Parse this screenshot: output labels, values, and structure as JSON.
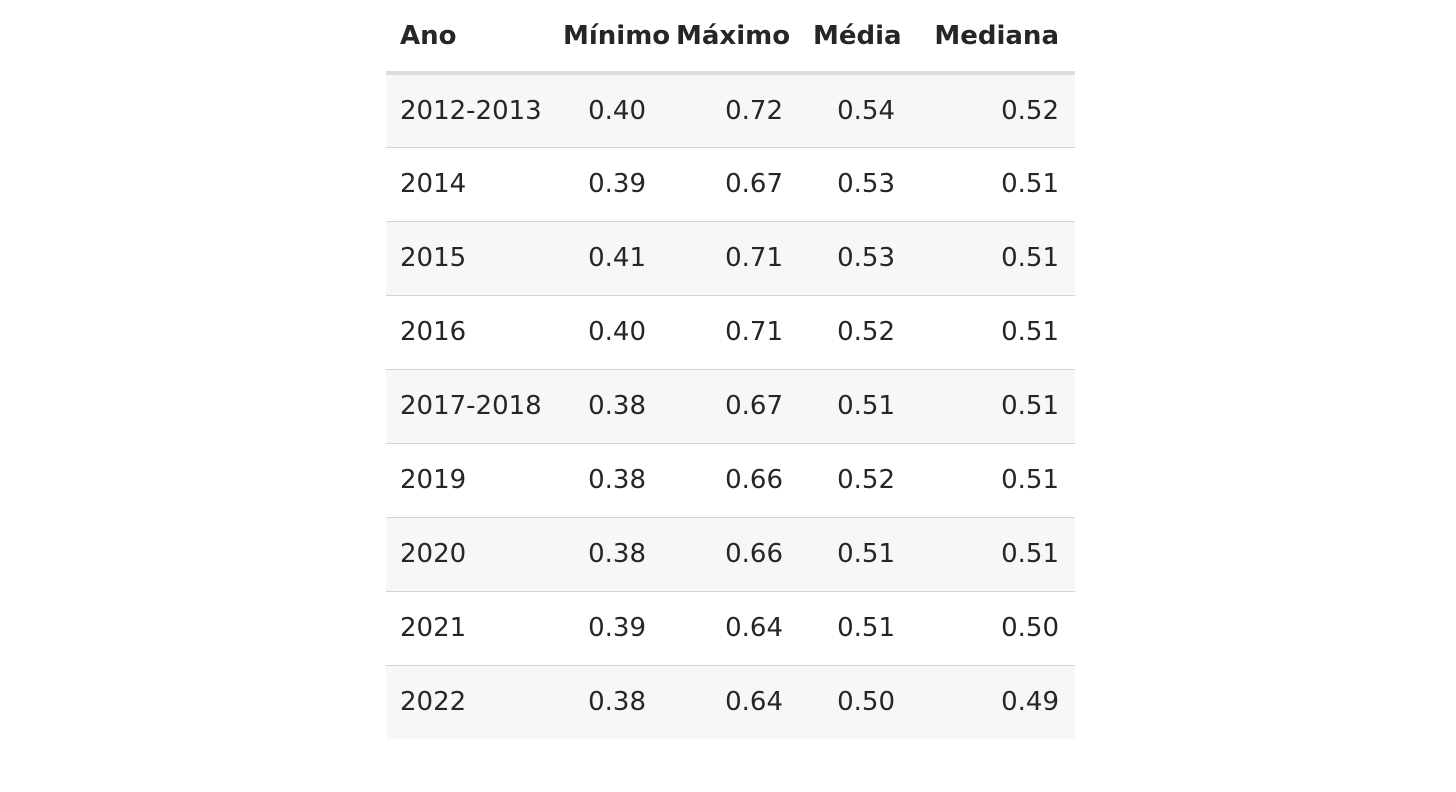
{
  "table": {
    "headers": [
      "Ano",
      "Mínimo",
      "Máximo",
      "Média",
      "Mediana"
    ],
    "rows": [
      [
        "2012-2013",
        "0.40",
        "0.72",
        "0.54",
        "0.52"
      ],
      [
        "2014",
        "0.39",
        "0.67",
        "0.53",
        "0.51"
      ],
      [
        "2015",
        "0.41",
        "0.71",
        "0.53",
        "0.51"
      ],
      [
        "2016",
        "0.40",
        "0.71",
        "0.52",
        "0.51"
      ],
      [
        "2017-2018",
        "0.38",
        "0.67",
        "0.51",
        "0.51"
      ],
      [
        "2019",
        "0.38",
        "0.66",
        "0.52",
        "0.51"
      ],
      [
        "2020",
        "0.38",
        "0.66",
        "0.51",
        "0.51"
      ],
      [
        "2021",
        "0.39",
        "0.64",
        "0.51",
        "0.50"
      ],
      [
        "2022",
        "0.38",
        "0.64",
        "0.50",
        "0.49"
      ]
    ]
  },
  "colors": {
    "text": "#262626",
    "stripe": "#f7f7f7",
    "header_rule": "#dcdcdc",
    "row_rule": "#d4d4d4"
  }
}
